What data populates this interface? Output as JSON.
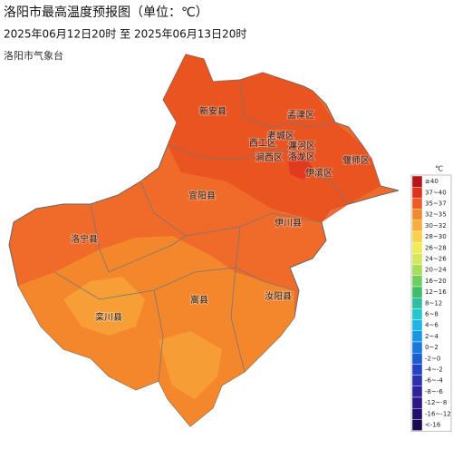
{
  "header": {
    "title": "洛阳市最高温度预报图（单位：℃）",
    "subtitle": "2025年06月12日20时  至  2025年06月13日20时",
    "source": "洛阳市气象台"
  },
  "regions": [
    "新安县",
    "孟津区",
    "西工区",
    "老城区",
    "瀍河区",
    "涧西区",
    "洛龙区",
    "偃师区",
    "伊滨区",
    "宜阳县",
    "伊川县",
    "洛宁县",
    "嵩县",
    "汝阳县",
    "栾川县"
  ],
  "legend": {
    "unit": "℃",
    "items": [
      {
        "label": "≥40",
        "color": "#b5161b"
      },
      {
        "label": "37~40",
        "color": "#e0331f"
      },
      {
        "label": "35~37",
        "color": "#ee5a24"
      },
      {
        "label": "32~35",
        "color": "#f4892c"
      },
      {
        "label": "30~32",
        "color": "#f8ae3a"
      },
      {
        "label": "28~30",
        "color": "#fbd04a"
      },
      {
        "label": "26~28",
        "color": "#f2ea55"
      },
      {
        "label": "24~26",
        "color": "#d4e85a"
      },
      {
        "label": "20~24",
        "color": "#a8dc5c"
      },
      {
        "label": "16~20",
        "color": "#6fcf5e"
      },
      {
        "label": "12~16",
        "color": "#3fbf6a"
      },
      {
        "label": "8~12",
        "color": "#2fbfa0"
      },
      {
        "label": "6~8",
        "color": "#26c6cf"
      },
      {
        "label": "4~6",
        "color": "#1fb4e8"
      },
      {
        "label": "2~4",
        "color": "#1a96e6"
      },
      {
        "label": "0~2",
        "color": "#1778de"
      },
      {
        "label": "-2~0",
        "color": "#1a5cd2"
      },
      {
        "label": "-4~-2",
        "color": "#2244c4"
      },
      {
        "label": "-6~-4",
        "color": "#2a30b0"
      },
      {
        "label": "-8~-6",
        "color": "#30229a"
      },
      {
        "label": "-12~-8",
        "color": "#2c1884"
      },
      {
        "label": "-16~-12",
        "color": "#24106c"
      },
      {
        "label": "<-16",
        "color": "#1a0a54"
      }
    ]
  }
}
